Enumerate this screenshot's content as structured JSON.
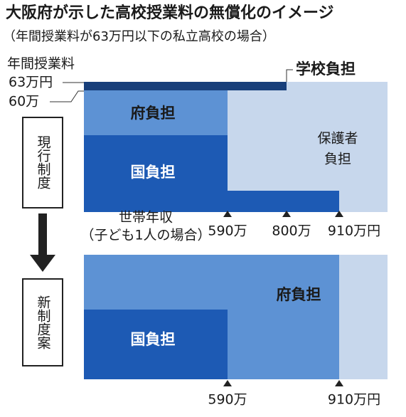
{
  "title": "大阪府が示した高校授業料の無償化のイメージ",
  "subtitle": "（年間授業料が63万円以下の私立高校の場合）",
  "fee_label": "年間授業料",
  "fee_levels": [
    "63万円",
    "60万"
  ],
  "income_label": "世帯年収",
  "income_note": "（子ども1人の場合）",
  "current": {
    "label": "現行制度",
    "school": "学校負担",
    "prefecture": "府負担",
    "national": "国負担",
    "guardian": [
      "保護者",
      "負担"
    ],
    "income_marks": [
      "590万",
      "800万",
      "910万円"
    ]
  },
  "proposed": {
    "label": "新制度案",
    "prefecture": "府負担",
    "national": "国負担",
    "income_marks": [
      "590万",
      "910万円"
    ]
  }
}
